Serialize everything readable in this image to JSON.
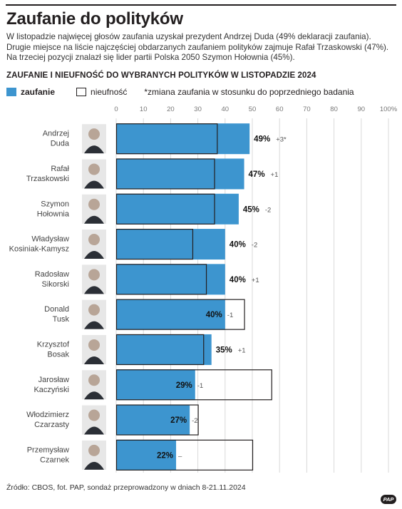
{
  "title": "Zaufanie do polityków",
  "lead": "W listopadzie najwięcej głosów zaufania uzyskał prezydent Andrzej Duda (49% deklaracji zaufania). Drugie miejsce na liście najczęściej obdarzanych zaufaniem polityków zajmuje Rafał Trzaskowski (47%).  Na trzeciej pozycji znalazł się lider partii Polska 2050 Szymon Hołownia (45%).",
  "subtitle": "ZAUFANIE I NIEUFNOŚĆ DO WYBRANYCH POLITYKÓW W LISTOPADZIE 2024",
  "legend": {
    "trust": "zaufanie",
    "distrust": "nieufność",
    "note": "*zmiana zaufania w stosunku do poprzedniego badania"
  },
  "source": "Źródło: CBOS, fot. PAP, sondaż przeprowadzony w dniach 8-21.11.2024",
  "logo": "PAP",
  "colors": {
    "trust": "#3d95cf",
    "distrust": "#ffffff",
    "outline": "#231f20",
    "grid": "#d9d9d9"
  },
  "chart_data": {
    "type": "bar",
    "orientation": "horizontal",
    "x_ticks": [
      "0",
      "10",
      "20",
      "30",
      "40",
      "50",
      "60",
      "70",
      "80",
      "90",
      "100%"
    ],
    "xlim": [
      0,
      100
    ],
    "grid": true,
    "series": [
      {
        "name": "zaufanie",
        "values": [
          49,
          47,
          45,
          40,
          40,
          40,
          35,
          29,
          27,
          22
        ]
      },
      {
        "name": "nieufność",
        "values": [
          37,
          36,
          36,
          28,
          33,
          47,
          32,
          57,
          30,
          50
        ]
      }
    ],
    "politicians": [
      {
        "name": [
          "Andrzej",
          "Duda"
        ],
        "trust": 49,
        "distrust": 37,
        "value_label": "49%",
        "change": "+3*"
      },
      {
        "name": [
          "Rafał",
          "Trzaskowski"
        ],
        "trust": 47,
        "distrust": 36,
        "value_label": "47%",
        "change": "+1"
      },
      {
        "name": [
          "Szymon",
          "Hołownia"
        ],
        "trust": 45,
        "distrust": 36,
        "value_label": "45%",
        "change": "-2"
      },
      {
        "name": [
          "Władysław",
          "Kosiniak-Kamysz"
        ],
        "trust": 40,
        "distrust": 28,
        "value_label": "40%",
        "change": "-2"
      },
      {
        "name": [
          "Radosław",
          "Sikorski"
        ],
        "trust": 40,
        "distrust": 33,
        "value_label": "40%",
        "change": "+1"
      },
      {
        "name": [
          "Donald",
          "Tusk"
        ],
        "trust": 40,
        "distrust": 47,
        "value_label": "40%",
        "change": "-1"
      },
      {
        "name": [
          "Krzysztof",
          "Bosak"
        ],
        "trust": 35,
        "distrust": 32,
        "value_label": "35%",
        "change": "+1"
      },
      {
        "name": [
          "Jarosław",
          "Kaczyński"
        ],
        "trust": 29,
        "distrust": 57,
        "value_label": "29%",
        "change": "-1"
      },
      {
        "name": [
          "Włodzimierz",
          "Czarzasty"
        ],
        "trust": 27,
        "distrust": 30,
        "value_label": "27%",
        "change": "-2"
      },
      {
        "name": [
          "Przemysław",
          "Czarnek"
        ],
        "trust": 22,
        "distrust": 50,
        "value_label": "22%",
        "change": "–"
      }
    ]
  }
}
